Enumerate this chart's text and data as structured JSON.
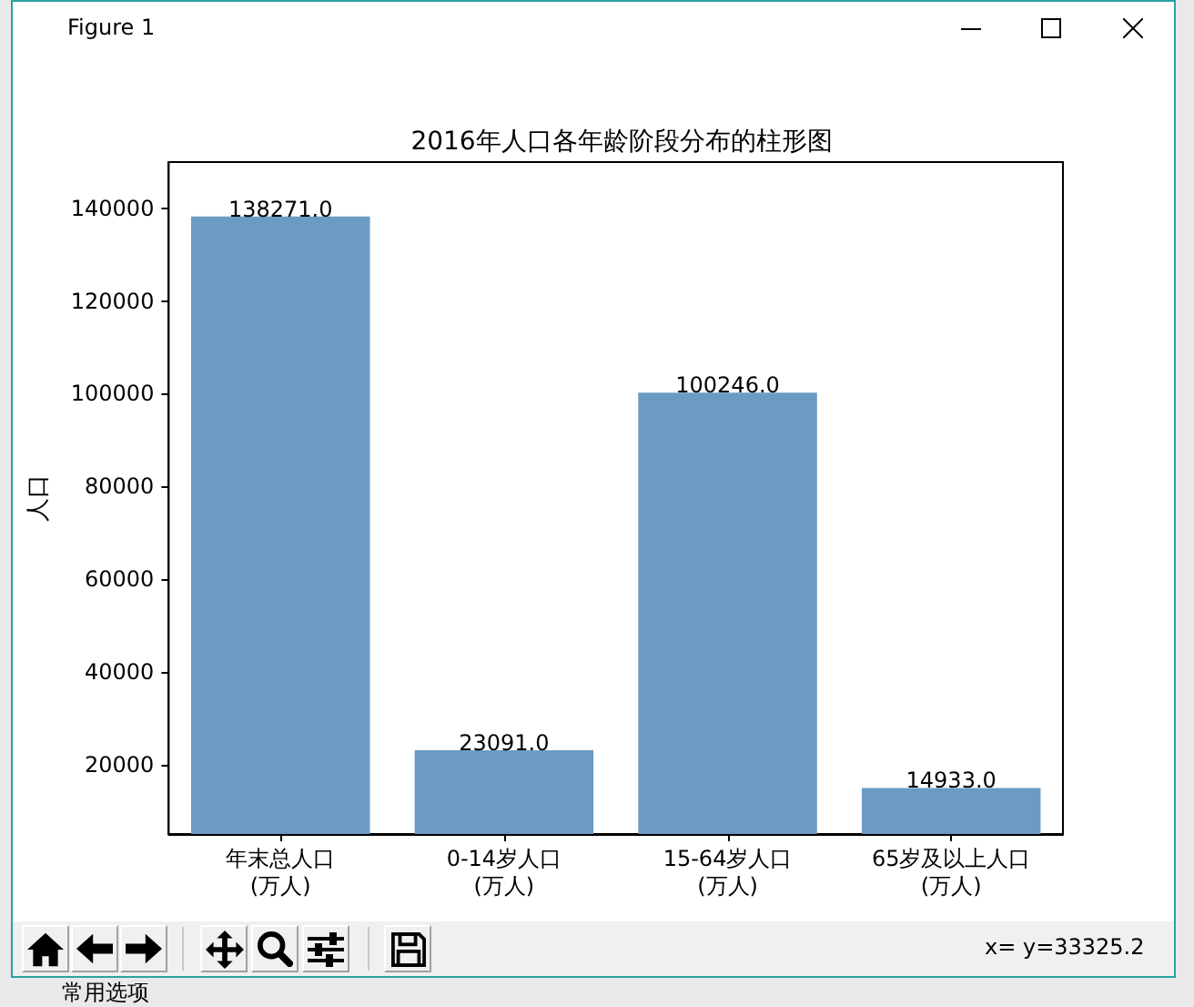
{
  "chart_data": {
    "type": "bar",
    "title": "2016年人口各年龄阶段分布的柱形图",
    "ylabel": "人口",
    "categories": [
      "年末总人口(万人)",
      "0-14岁人口(万人)",
      "15-64岁人口(万人)",
      "65岁及以上人口(万人)"
    ],
    "values": [
      138271,
      23091,
      100246,
      14933
    ],
    "value_labels": [
      "138271.0",
      "23091.0",
      "100246.0",
      "14933.0"
    ],
    "color": "#6b9bc3",
    "ylim": [
      5000,
      150000
    ],
    "yticks": [
      20000,
      40000,
      60000,
      80000,
      100000,
      120000,
      140000
    ],
    "grid": false,
    "annotations": [
      "Figure 1",
      "x= y=33325.2",
      "常用选项"
    ]
  }
}
